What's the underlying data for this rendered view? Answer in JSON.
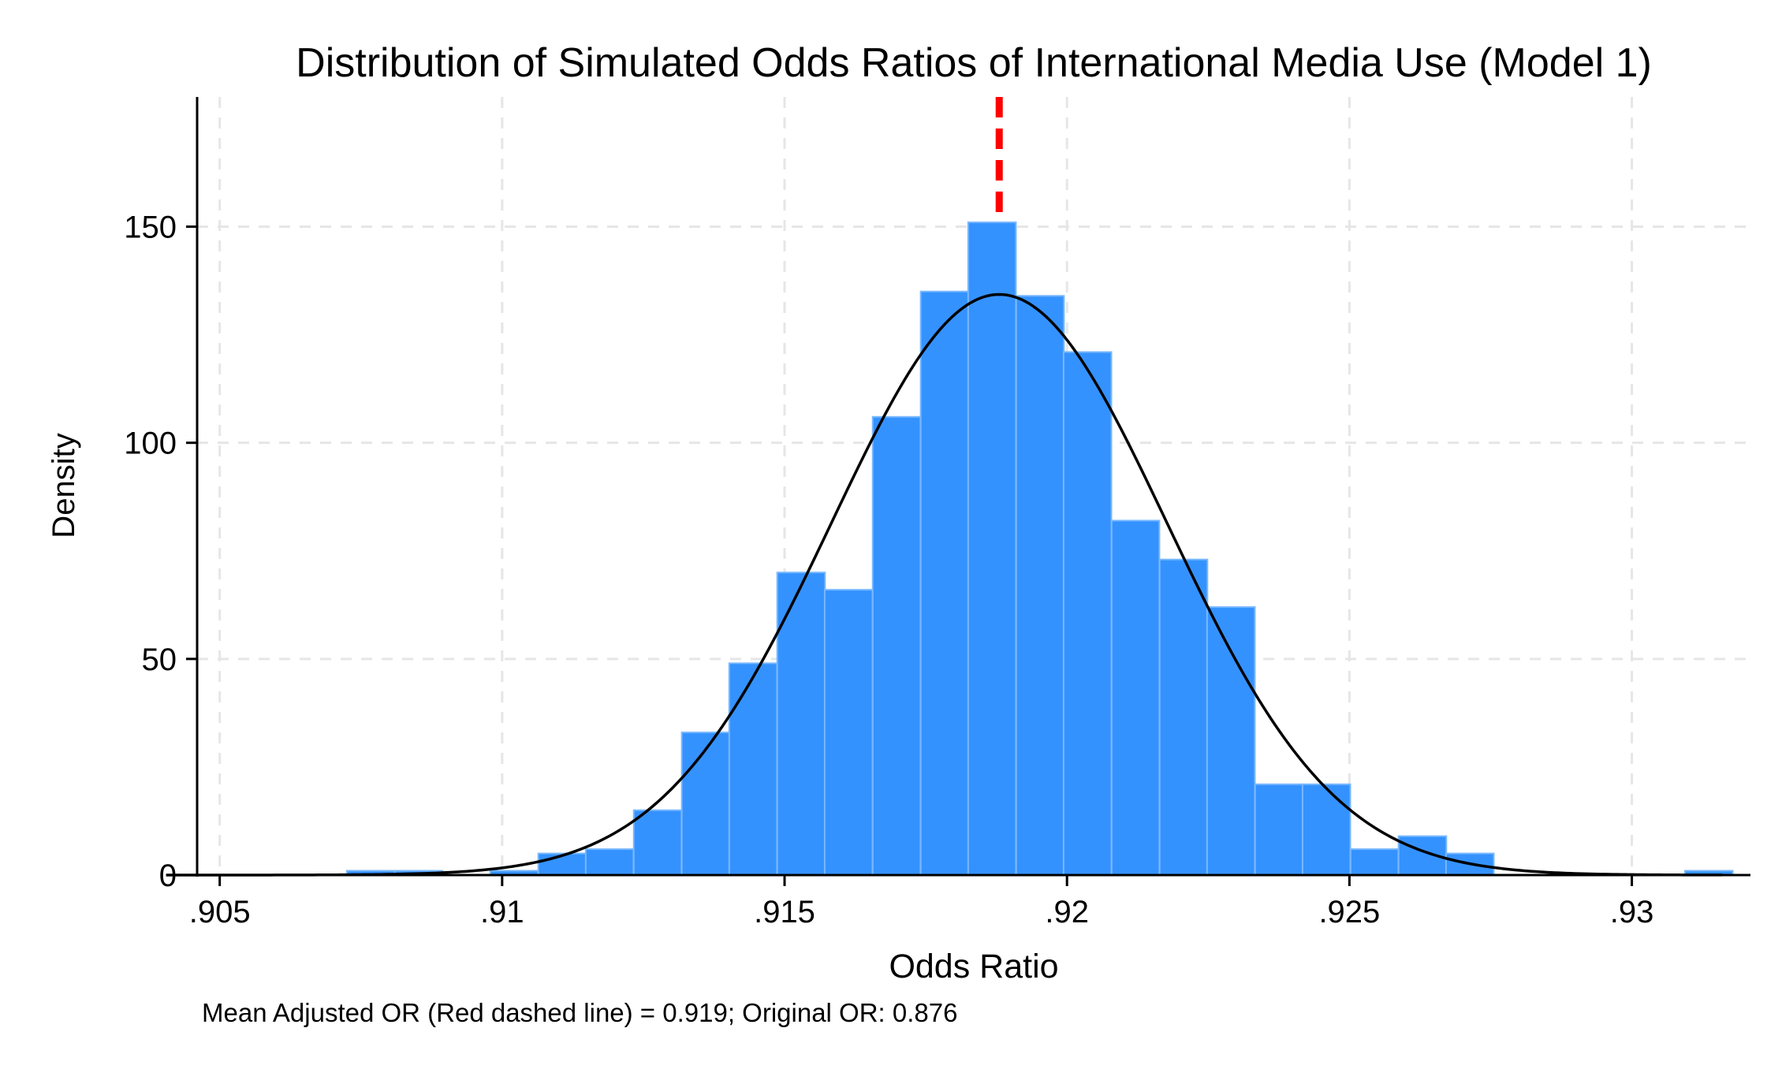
{
  "chart_data": {
    "type": "bar",
    "title": "Distribution of Simulated Odds Ratios of International Media Use (Model 1)",
    "xlabel": "Odds Ratio",
    "ylabel": "Density",
    "note": "Mean Adjusted OR (Red dashed line) = 0.919; Original OR: 0.876",
    "xlim": [
      0.9046,
      0.9321
    ],
    "ylim": [
      0,
      180
    ],
    "x_ticks": [
      {
        "value": 0.905,
        "label": ".905"
      },
      {
        "value": 0.91,
        "label": ".91"
      },
      {
        "value": 0.915,
        "label": ".915"
      },
      {
        "value": 0.92,
        "label": ".92"
      },
      {
        "value": 0.925,
        "label": ".925"
      },
      {
        "value": 0.93,
        "label": ".93"
      }
    ],
    "y_ticks": [
      {
        "value": 0,
        "label": "0"
      },
      {
        "value": 50,
        "label": "50"
      },
      {
        "value": 100,
        "label": "100"
      },
      {
        "value": 150,
        "label": "150"
      }
    ],
    "bin_width": 0.000846,
    "bins": [
      {
        "x0": 0.90725,
        "density": 1
      },
      {
        "x0": 0.9081,
        "density": 1
      },
      {
        "x0": 0.90979,
        "density": 1
      },
      {
        "x0": 0.91064,
        "density": 5
      },
      {
        "x0": 0.91148,
        "density": 6
      },
      {
        "x0": 0.91233,
        "density": 15
      },
      {
        "x0": 0.91318,
        "density": 33
      },
      {
        "x0": 0.91402,
        "density": 49
      },
      {
        "x0": 0.91487,
        "density": 70
      },
      {
        "x0": 0.91571,
        "density": 66
      },
      {
        "x0": 0.91656,
        "density": 106
      },
      {
        "x0": 0.91741,
        "density": 135
      },
      {
        "x0": 0.91825,
        "density": 151
      },
      {
        "x0": 0.9191,
        "density": 134
      },
      {
        "x0": 0.91994,
        "density": 121
      },
      {
        "x0": 0.92079,
        "density": 82
      },
      {
        "x0": 0.92164,
        "density": 73
      },
      {
        "x0": 0.92248,
        "density": 62
      },
      {
        "x0": 0.92333,
        "density": 21
      },
      {
        "x0": 0.92417,
        "density": 21
      },
      {
        "x0": 0.92502,
        "density": 6
      },
      {
        "x0": 0.92587,
        "density": 9
      },
      {
        "x0": 0.92671,
        "density": 5
      },
      {
        "x0": 0.93094,
        "density": 1
      }
    ],
    "normal_curve": {
      "mean": 0.9188,
      "sd": 0.00297
    },
    "mean_line": {
      "value": 0.9188,
      "color": "#ff0000"
    },
    "grid": true,
    "legend": "none",
    "colors": {
      "bar_fill": "#3492ff",
      "bar_edge": "#78b8ff",
      "curve": "#000000",
      "grid": "#e6e6e6"
    }
  }
}
